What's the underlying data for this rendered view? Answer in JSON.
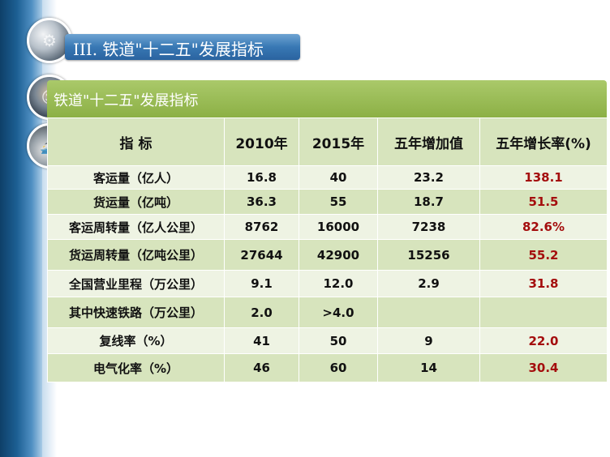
{
  "slide_title": "III. 铁道\"十二五\"发展指标",
  "table": {
    "title": "铁道\"十二五\"发展指标",
    "headers": [
      "指 标",
      "2010年",
      "2015年",
      "五年增加值",
      "五年增长率(%)"
    ],
    "rows": [
      {
        "label": "客运量（亿人）",
        "v2010": "16.8",
        "v2015": "40",
        "increase": "23.2",
        "rate": "138.1"
      },
      {
        "label": "货运量（亿吨）",
        "v2010": "36.3",
        "v2015": "55",
        "increase": "18.7",
        "rate": "51.5"
      },
      {
        "label": "客运周转量（亿人公里）",
        "v2010": "8762",
        "v2015": "16000",
        "increase": "7238",
        "rate": "82.6%"
      },
      {
        "label": "货运周转量（亿吨公里）",
        "v2010": "27644",
        "v2015": "42900",
        "increase": "15256",
        "rate": "55.2"
      },
      {
        "label": "全国营业里程（万公里）",
        "v2010": "9.1",
        "v2015": "12.0",
        "increase": "2.9",
        "rate": "31.8"
      },
      {
        "label": "其中快速铁路（万公里）",
        "v2010": "2.0",
        "v2015": ">4.0",
        "increase": "",
        "rate": ""
      },
      {
        "label": "复线率（%）",
        "v2010": "41",
        "v2015": "50",
        "increase": "9",
        "rate": "22.0"
      },
      {
        "label": "电气化率（%）",
        "v2010": "46",
        "v2015": "60",
        "increase": "14",
        "rate": "30.4"
      }
    ]
  },
  "colors": {
    "header_green": "#8cb045",
    "row_dark": "#d7e4bd",
    "row_light": "#eef3e3",
    "rate_red": "#a40d0d",
    "title_blue": "#3878b4"
  },
  "icons": [
    "metal-pipes-photo-icon",
    "businessman-photo-icon",
    "train-photo-icon"
  ]
}
